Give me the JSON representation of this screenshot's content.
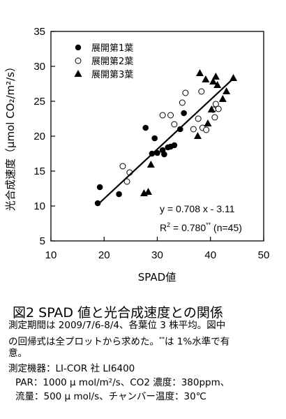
{
  "chart_data": {
    "type": "scatter",
    "xlabel": "SPAD値",
    "ylabel": "光合成速度（μmol CO₂/m²/s）",
    "xlim": [
      10,
      50
    ],
    "ylim": [
      5,
      35
    ],
    "xticks": [
      10,
      20,
      30,
      40,
      50
    ],
    "yticks": [
      5,
      10,
      15,
      20,
      25,
      30,
      35
    ],
    "legend_position": "top-left",
    "series": [
      {
        "name": "展開第1葉",
        "marker": "filled-circle",
        "points": [
          [
            18.8,
            10.4
          ],
          [
            19.2,
            12.7
          ],
          [
            22.8,
            11.7
          ],
          [
            27.8,
            21.2
          ],
          [
            29.0,
            17.5
          ],
          [
            29.5,
            19.7
          ],
          [
            30.0,
            17.6
          ],
          [
            31.0,
            18.0
          ],
          [
            31.3,
            17.4
          ],
          [
            32.0,
            18.4
          ],
          [
            32.5,
            18.5
          ],
          [
            33.2,
            18.7
          ],
          [
            34.3,
            21.0
          ],
          [
            35.0,
            23.3
          ]
        ]
      },
      {
        "name": "展開第2葉",
        "marker": "open-circle",
        "points": [
          [
            23.5,
            15.7
          ],
          [
            24.3,
            13.5
          ],
          [
            24.8,
            14.8
          ],
          [
            31.0,
            23.0
          ],
          [
            32.5,
            23.0
          ],
          [
            33.2,
            21.7
          ],
          [
            34.7,
            24.8
          ],
          [
            35.3,
            26.2
          ],
          [
            36.8,
            21.0
          ],
          [
            37.7,
            22.5
          ],
          [
            38.3,
            26.4
          ],
          [
            38.5,
            21.2
          ],
          [
            39.2,
            20.9
          ],
          [
            40.5,
            23.8
          ],
          [
            40.8,
            22.7
          ],
          [
            41.0,
            24.6
          ],
          [
            41.5,
            23.9
          ]
        ]
      },
      {
        "name": "展開第3葉",
        "marker": "filled-triangle",
        "points": [
          [
            27.5,
            11.8
          ],
          [
            28.3,
            12.0
          ],
          [
            28.8,
            15.9
          ],
          [
            37.6,
            20.0
          ],
          [
            38.0,
            29.0
          ],
          [
            39.1,
            28.1
          ],
          [
            39.5,
            21.8
          ],
          [
            40.2,
            23.8
          ],
          [
            40.5,
            27.8
          ],
          [
            41.0,
            28.5
          ],
          [
            41.3,
            27.3
          ],
          [
            42.3,
            25.3
          ],
          [
            43.0,
            26.4
          ],
          [
            44.3,
            28.3
          ]
        ]
      }
    ],
    "regression": {
      "slope": 0.708,
      "intercept": -3.11,
      "x_range": [
        18.8,
        44.3
      ],
      "equation": "y = 0.708 x - 3.11",
      "r2_label": "R",
      "r2_exp": "2",
      "r2_value": " = 0.780",
      "significance": "**",
      "n_label": " (n=45)"
    }
  },
  "caption": {
    "title": "図2  SPAD 値と光合成速度との関係",
    "line1": "測定期間は 2009/7/6-8/4、各葉位 3 株平均。図中",
    "line2a": "の回帰式は全プロットから求めた。",
    "line2_sup": "**",
    "line2b": "は  1%水準で有",
    "line3": "意。",
    "line4": "測定機器：LI-COR 社 LI6400",
    "line5": "PAR：1000 μ mol/m²/s、CO2 濃度：380ppm、",
    "line6": "流量：500 μ mol/s、チャンバー温度：30℃"
  }
}
